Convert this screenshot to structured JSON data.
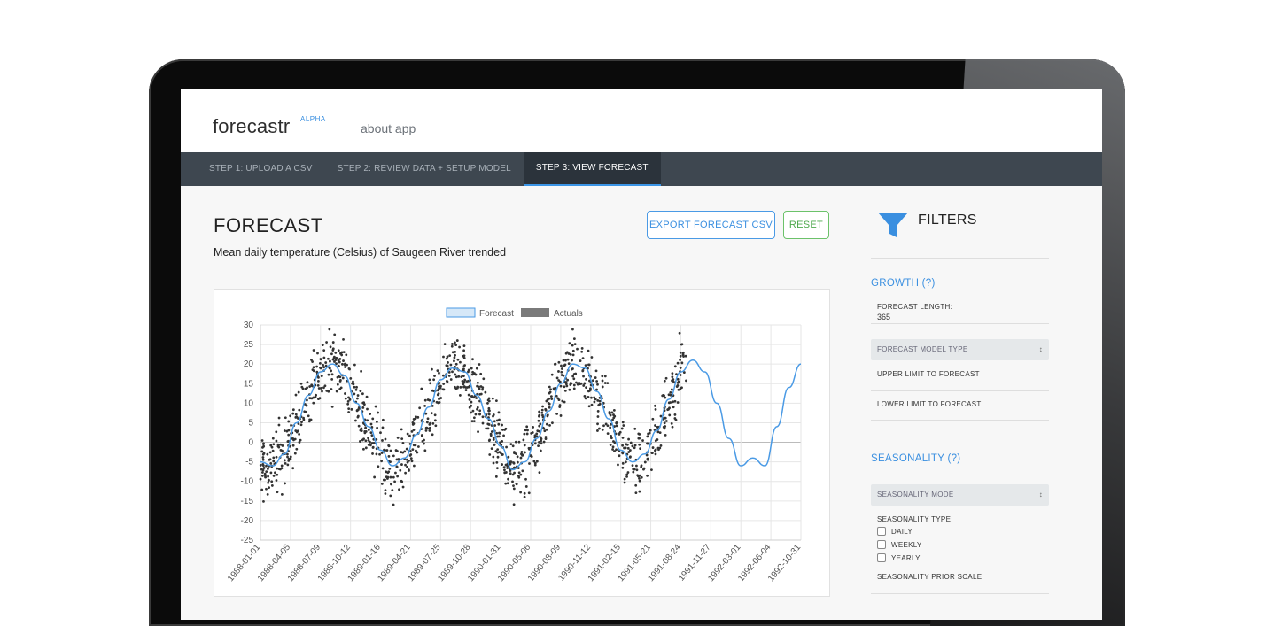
{
  "app": {
    "brand": "forecastr",
    "badge": "ALPHA",
    "about": "about app"
  },
  "tabs": [
    {
      "label": "STEP 1: UPLOAD A CSV",
      "active": false
    },
    {
      "label": "STEP 2: REVIEW DATA + SETUP MODEL",
      "active": false
    },
    {
      "label": "STEP 3: VIEW FORECAST",
      "active": true
    }
  ],
  "main": {
    "title": "FORECAST",
    "subtitle": "Mean daily temperature (Celsius) of Saugeen River trended",
    "export_label": "EXPORT FORECAST CSV",
    "reset_label": "RESET"
  },
  "sidebar": {
    "title": "FILTERS",
    "growth_title": "GROWTH (?)",
    "forecast_length_label": "FORECAST LENGTH:",
    "forecast_length_value": "365",
    "model_type_label": "FORECAST MODEL TYPE",
    "upper_limit_label": "UPPER LIMIT TO FORECAST",
    "lower_limit_label": "LOWER LIMIT TO FORECAST",
    "seasonality_title": "SEASONALITY (?)",
    "seasonality_mode_label": "SEASONALITY MODE",
    "seasonality_type_label": "SEASONALITY TYPE:",
    "seasonality_types": [
      "DAILY",
      "WEEKLY",
      "YEARLY"
    ],
    "prior_scale_label": "SEASONALITY PRIOR SCALE"
  },
  "colors": {
    "accent": "#3a8fe0",
    "reset": "#4ea84c",
    "forecast_line": "#4a9ae5",
    "actuals": "#333333"
  },
  "chart_data": {
    "type": "line",
    "legend": [
      "Forecast",
      "Actuals"
    ],
    "legend_position": "top",
    "ylim": [
      -25,
      30
    ],
    "yticks": [
      30,
      25,
      20,
      15,
      10,
      5,
      0,
      -5,
      -10,
      -15,
      -20,
      -25
    ],
    "xticks": [
      "1988-01-01",
      "1988-04-05",
      "1988-07-09",
      "1988-10-12",
      "1989-01-16",
      "1989-04-21",
      "1989-07-25",
      "1989-10-28",
      "1990-01-31",
      "1990-05-06",
      "1990-08-09",
      "1990-11-12",
      "1991-02-15",
      "1991-05-21",
      "1991-08-24",
      "1991-11-27",
      "1992-03-01",
      "1992-06-04",
      "1992-10-31"
    ],
    "grid": true,
    "series": [
      {
        "name": "Forecast",
        "style": "line",
        "x": [
          0,
          0.4,
          0.8,
          1.2,
          1.6,
          2.0,
          2.4,
          2.8,
          3.2,
          3.6,
          4.0,
          4.4,
          4.8,
          5.2,
          5.6,
          6.0,
          6.4,
          6.8,
          7.2,
          7.6,
          8.0,
          8.4,
          8.8,
          9.2,
          9.6,
          10.0,
          10.4,
          10.8,
          11.2,
          11.6,
          12.0,
          12.4,
          12.8,
          13.2,
          13.6,
          14.0,
          14.4,
          14.8,
          15.2,
          15.6,
          16.0,
          16.4,
          16.8,
          17.2,
          17.6,
          18.0
        ],
        "y": [
          -5,
          -6,
          -3,
          5,
          12,
          18,
          20,
          17,
          10,
          4,
          -2,
          -6,
          -4,
          2,
          9,
          16,
          19,
          18,
          12,
          6,
          -1,
          -7,
          -5,
          1,
          8,
          15,
          20,
          19,
          13,
          6,
          -2,
          -5,
          -3,
          3,
          11,
          18,
          21,
          18,
          10,
          1,
          -6,
          -4,
          -6,
          4,
          14,
          20
        ]
      },
      {
        "name": "Actuals",
        "style": "scatter",
        "note": "noisy daily observations around the forecast line, 1988-01-01 to 1991-12"
      }
    ]
  }
}
